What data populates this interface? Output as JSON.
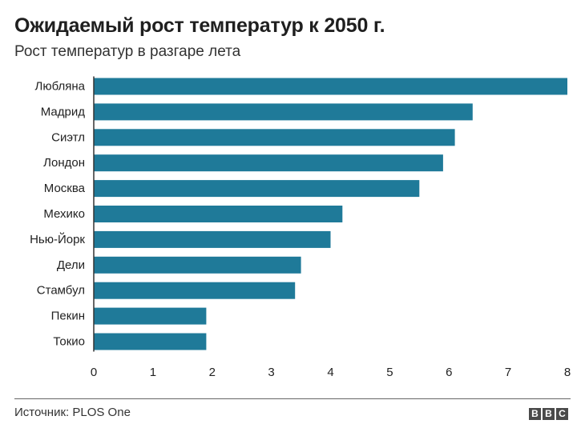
{
  "header": {
    "title": "Ожидаемый рост температур к 2050 г.",
    "subtitle": "Рост температур в разгаре лета"
  },
  "footer": {
    "source": "Источник: PLOS One",
    "logo_letters": [
      "B",
      "B",
      "C"
    ]
  },
  "colors": {
    "bar": "#1f7a99",
    "axis": "#333333",
    "text": "#222222"
  },
  "chart_data": {
    "type": "bar",
    "orientation": "horizontal",
    "categories": [
      "Любляна",
      "Мадрид",
      "Сиэтл",
      "Лондон",
      "Москва",
      "Мехико",
      "Нью-Йорк",
      "Дели",
      "Стамбул",
      "Пекин",
      "Токио"
    ],
    "values": [
      8.0,
      6.4,
      6.1,
      5.9,
      5.5,
      4.2,
      4.0,
      3.5,
      3.4,
      1.9,
      1.9
    ],
    "xlim": [
      0,
      8
    ],
    "xticks": [
      0,
      1,
      2,
      3,
      4,
      5,
      6,
      7,
      8
    ],
    "grid": false,
    "legend": "none"
  }
}
